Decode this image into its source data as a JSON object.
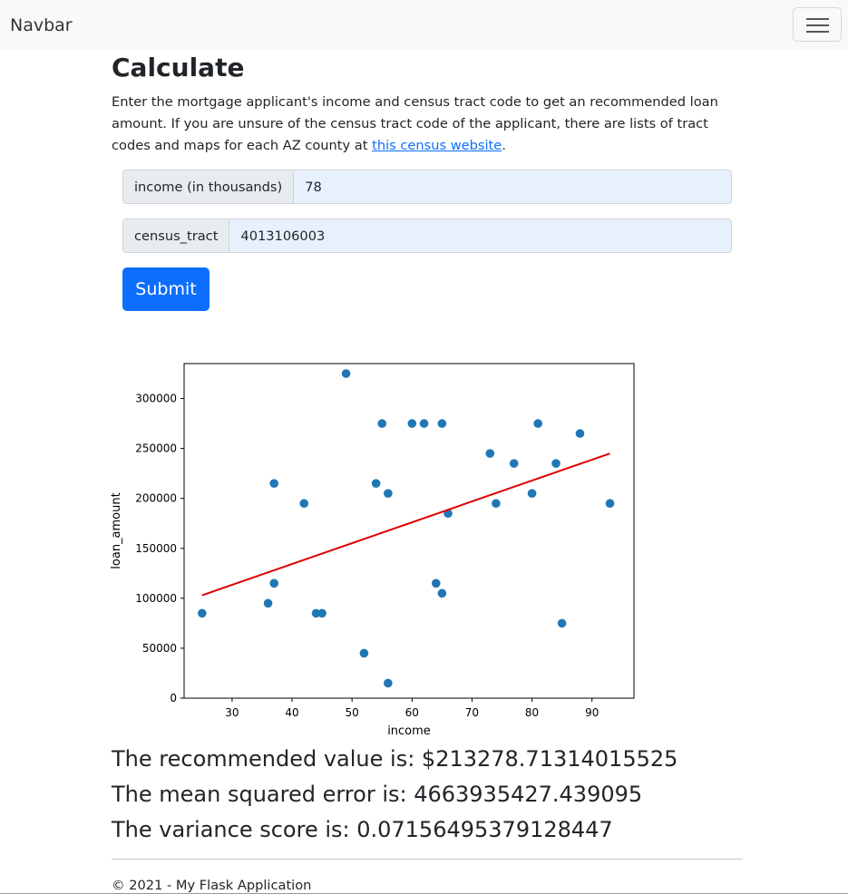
{
  "navbar": {
    "brand": "Navbar"
  },
  "page": {
    "title": "Calculate",
    "lead_text": "Enter the mortgage applicant's income and census tract code to get an recommended loan amount. If you are unsure of the census tract code of the applicant, there are lists of tract codes and maps for each AZ county at ",
    "lead_link": "this census website",
    "lead_end": "."
  },
  "form": {
    "income_label": "income (in thousands)",
    "income_value": "78",
    "tract_label": "census_tract",
    "tract_value": "4013106003",
    "submit_label": "Submit"
  },
  "chart_data": {
    "type": "scatter",
    "xlabel": "income",
    "ylabel": "loan_amount",
    "xlim": [
      22,
      97
    ],
    "ylim": [
      0,
      335000
    ],
    "xticks": [
      30,
      40,
      50,
      60,
      70,
      80,
      90
    ],
    "yticks": [
      0,
      50000,
      100000,
      150000,
      200000,
      250000,
      300000
    ],
    "points_color": "#1f77b4",
    "line_color": "#e00000",
    "points": [
      [
        25,
        85000
      ],
      [
        36,
        95000
      ],
      [
        37,
        215000
      ],
      [
        37,
        115000
      ],
      [
        42,
        195000
      ],
      [
        44,
        85000
      ],
      [
        45,
        85000
      ],
      [
        49,
        325000
      ],
      [
        52,
        45000
      ],
      [
        54,
        215000
      ],
      [
        55,
        275000
      ],
      [
        56,
        205000
      ],
      [
        56,
        15000
      ],
      [
        60,
        275000
      ],
      [
        62,
        275000
      ],
      [
        64,
        115000
      ],
      [
        65,
        275000
      ],
      [
        65,
        105000
      ],
      [
        66,
        185000
      ],
      [
        73,
        245000
      ],
      [
        74,
        195000
      ],
      [
        77,
        235000
      ],
      [
        80,
        205000
      ],
      [
        81,
        275000
      ],
      [
        84,
        235000
      ],
      [
        85,
        75000
      ],
      [
        88,
        265000
      ],
      [
        93,
        195000
      ]
    ],
    "trend_line": [
      [
        25,
        103000
      ],
      [
        93,
        245000
      ]
    ]
  },
  "results": {
    "recommended": "The recommended value is: $213278.71314015525",
    "mse": "The mean squared error is: 4663935427.439095",
    "variance": "The variance score is: 0.07156495379128447"
  },
  "footer": {
    "text": "© 2021 - My Flask Application"
  }
}
